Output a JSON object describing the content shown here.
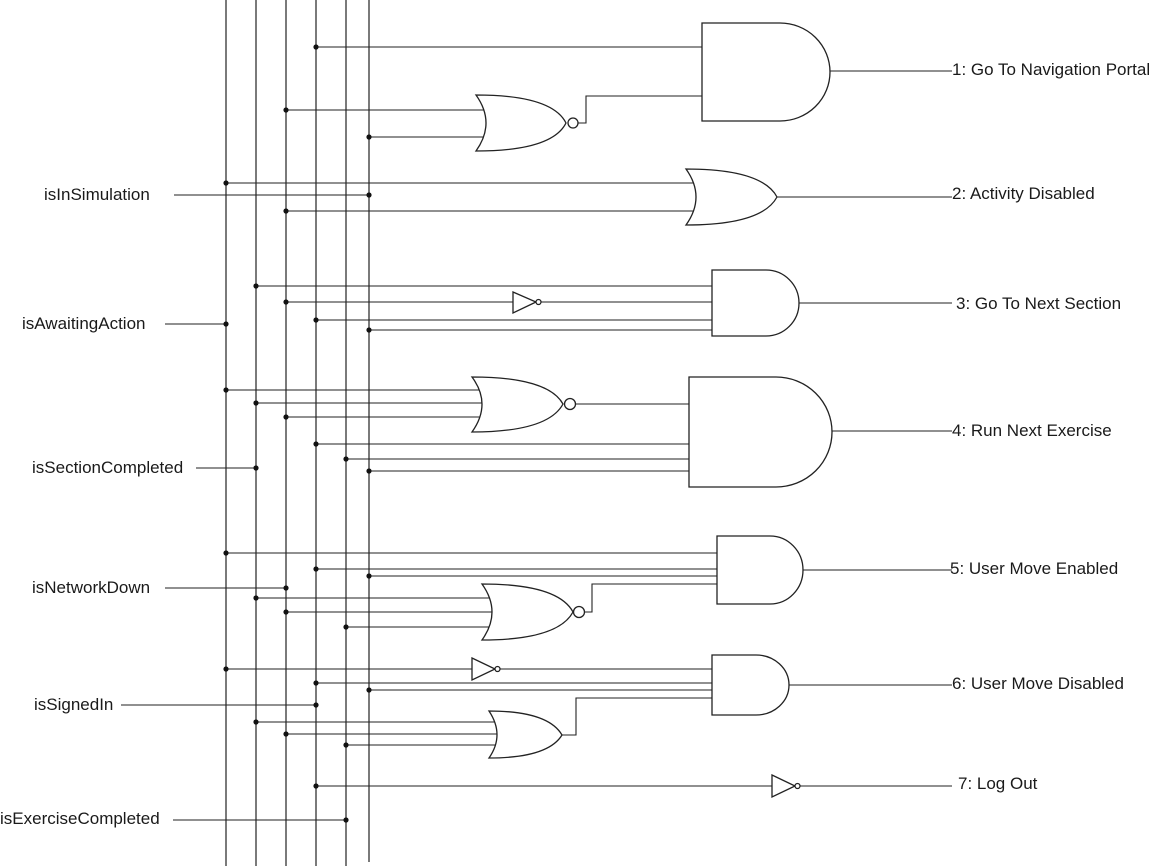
{
  "inputs": {
    "in1": "isInSimulation",
    "in2": "isAwaitingAction",
    "in3": "isSectionCompleted",
    "in4": "isNetworkDown",
    "in5": "isSignedIn",
    "in6": "isExerciseCompleted"
  },
  "outputs": {
    "out1": "1: Go To Navigation Portal",
    "out2": "2: Activity Disabled",
    "out3": "3: Go To Next Section",
    "out4": "4: Run Next Exercise",
    "out5": "5:  User Move Enabled",
    "out6": "6: User Move Disabled",
    "out7": "7: Log Out"
  },
  "colors": {
    "line": "#222222",
    "background": "#ffffff"
  }
}
